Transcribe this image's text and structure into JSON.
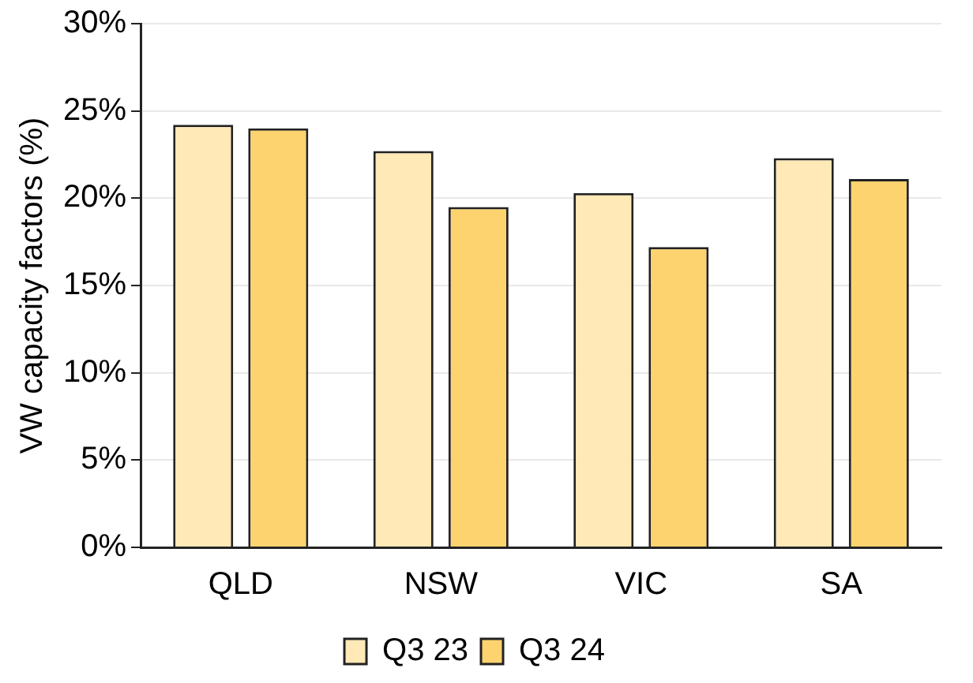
{
  "chart_data": {
    "type": "bar",
    "ylabel": "VW capacity factors (%)",
    "categories": [
      "QLD",
      "NSW",
      "VIC",
      "SA"
    ],
    "series": [
      {
        "name": "Q3 23",
        "color": "#fee9b7",
        "values": [
          24.2,
          22.7,
          20.3,
          22.3
        ]
      },
      {
        "name": "Q3 24",
        "color": "#fdd36f",
        "values": [
          24.0,
          19.5,
          17.2,
          21.1
        ]
      }
    ],
    "ylim": [
      0,
      30
    ],
    "yticks": [
      {
        "value": 0,
        "label": "0%"
      },
      {
        "value": 5,
        "label": "5%"
      },
      {
        "value": 10,
        "label": "10%"
      },
      {
        "value": 15,
        "label": "15%"
      },
      {
        "value": 20,
        "label": "20%"
      },
      {
        "value": 25,
        "label": "25%"
      },
      {
        "value": 30,
        "label": "30%"
      }
    ],
    "grid": "y",
    "legend": "bottom"
  }
}
